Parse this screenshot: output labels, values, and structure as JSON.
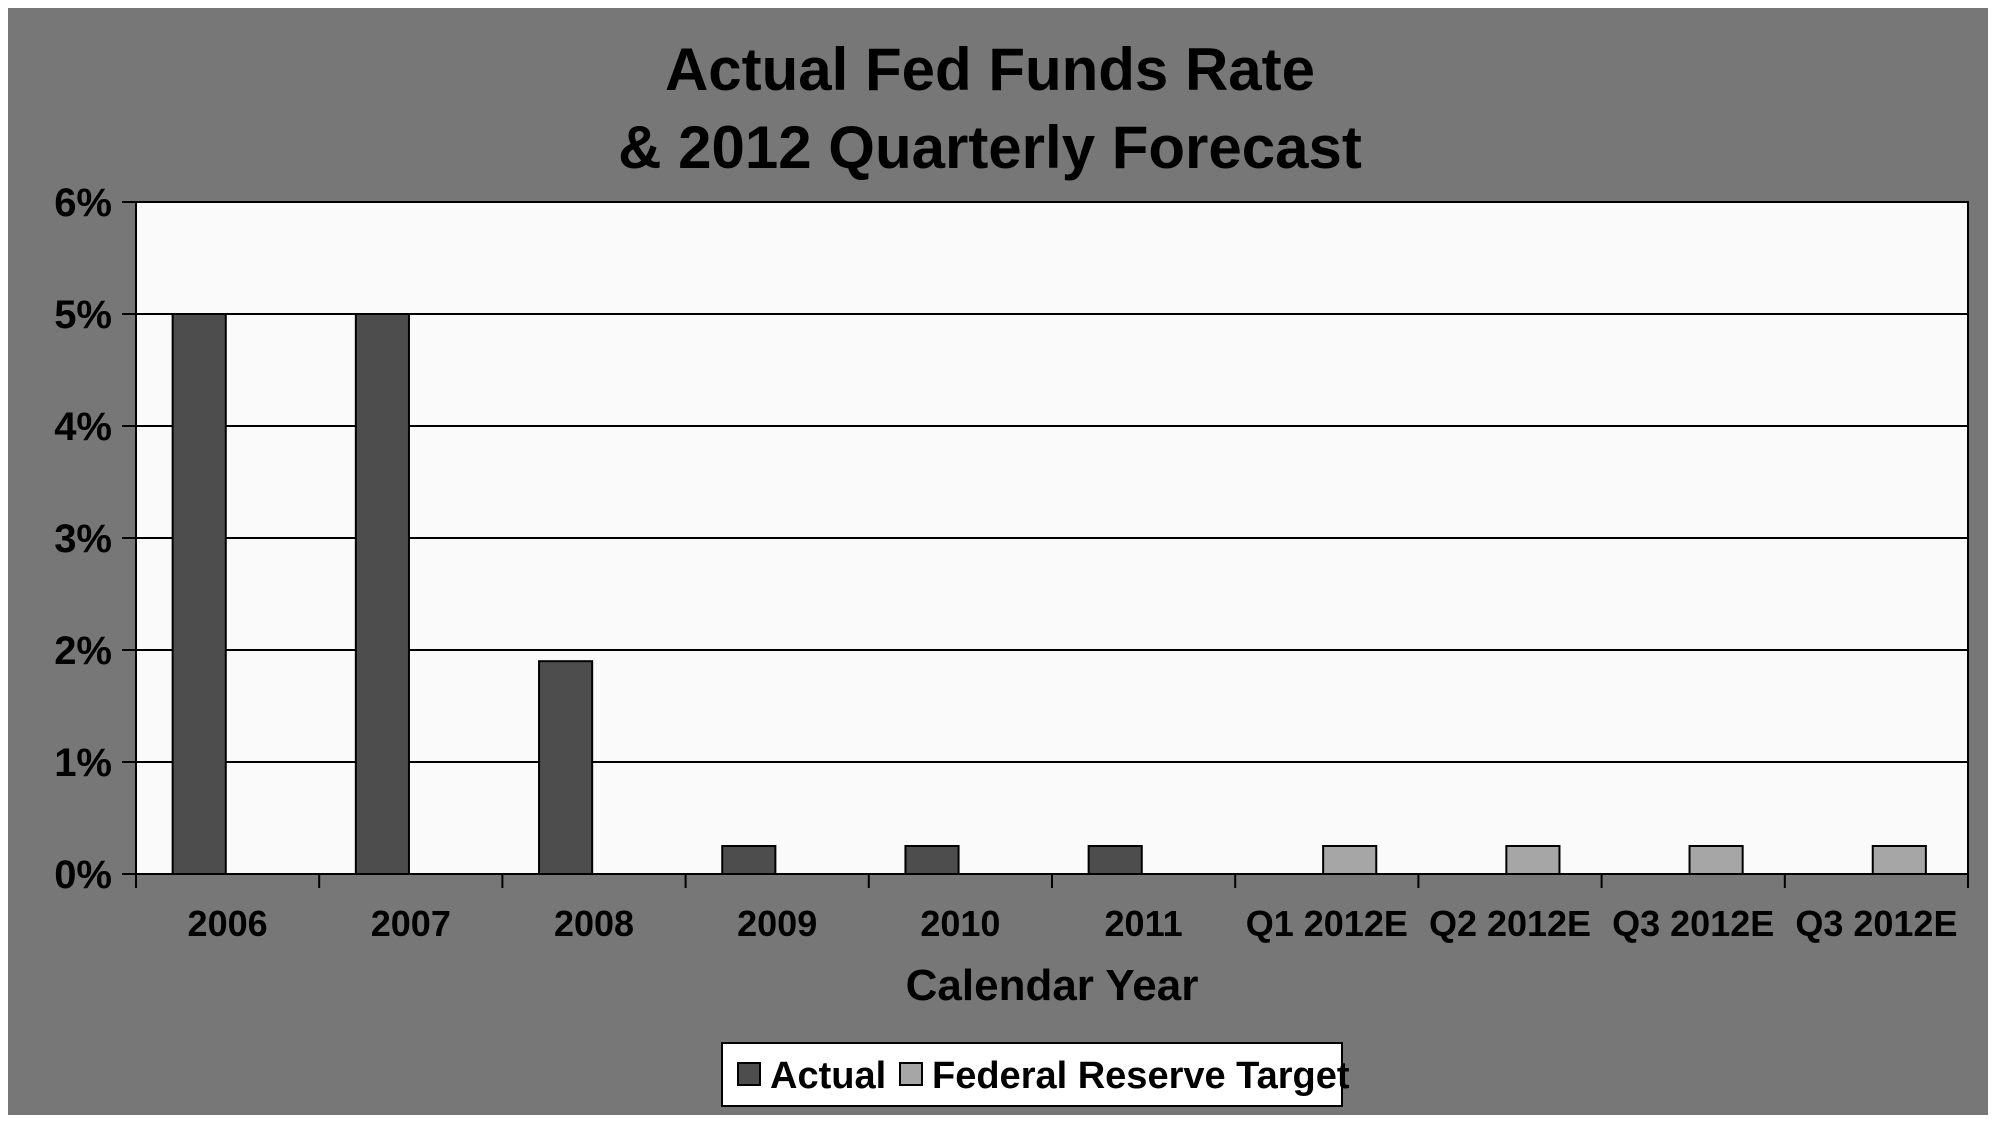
{
  "chart_data": {
    "type": "bar",
    "title_lines": [
      "Actual Fed Funds Rate",
      "& 2012 Quarterly Forecast"
    ],
    "xlabel": "Calendar Year",
    "ylabel": "",
    "categories": [
      "2006",
      "2007",
      "2008",
      "2009",
      "2010",
      "2011",
      "Q1 2012E",
      "Q2 2012E",
      "Q3 2012E",
      "Q3 2012E"
    ],
    "series": [
      {
        "name": "Actual",
        "color": "#4d4d4d",
        "values": [
          5.0,
          5.0,
          1.9,
          0.25,
          0.25,
          0.25,
          null,
          null,
          null,
          null
        ]
      },
      {
        "name": "Federal Reserve Target",
        "color": "#a6a6a6",
        "values": [
          null,
          null,
          null,
          null,
          null,
          null,
          0.25,
          0.25,
          0.25,
          0.25
        ]
      }
    ],
    "ylim": [
      0,
      6
    ],
    "yticks": [
      0,
      1,
      2,
      3,
      4,
      5,
      6
    ],
    "ytick_labels": [
      "0%",
      "1%",
      "2%",
      "3%",
      "4%",
      "5%",
      "6%"
    ],
    "grid": true,
    "legend_position": "bottom-center",
    "colors": {
      "frame_background": "#777777",
      "plot_background": "#fafafa",
      "gridline": "#000000"
    }
  }
}
